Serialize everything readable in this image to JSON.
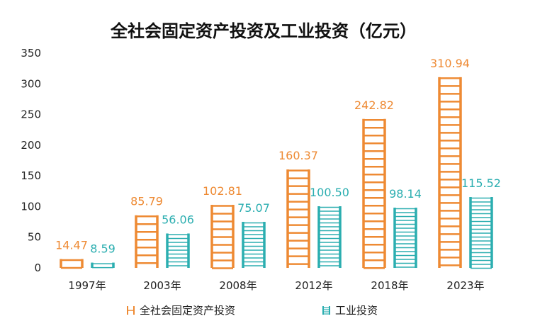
{
  "chart_data": {
    "type": "bar",
    "title": "全社会固定资产投资及工业投资（亿元）",
    "categories": [
      "1997年",
      "2003年",
      "2008年",
      "2012年",
      "2018年",
      "2023年"
    ],
    "series": [
      {
        "name": "全社会固定资产投资",
        "color": "#EE8A33",
        "values": [
          14.47,
          85.79,
          102.81,
          160.37,
          242.82,
          310.94
        ],
        "labels": [
          "14.47",
          "85.79",
          "102.81",
          "160.37",
          "242.82",
          "310.94"
        ]
      },
      {
        "name": "工业投资",
        "color": "#2BAEB0",
        "values": [
          8.59,
          56.06,
          75.07,
          100.5,
          98.14,
          115.52
        ],
        "labels": [
          "8.59",
          "56.06",
          "75.07",
          "100.50",
          "98.14",
          "115.52"
        ]
      }
    ],
    "ylim": [
      0,
      350
    ],
    "yticks": [
      0,
      50,
      100,
      150,
      200,
      250,
      300,
      350
    ],
    "bar_style": "ladder",
    "legend_position": "bottom",
    "xlabel": "",
    "ylabel": ""
  }
}
